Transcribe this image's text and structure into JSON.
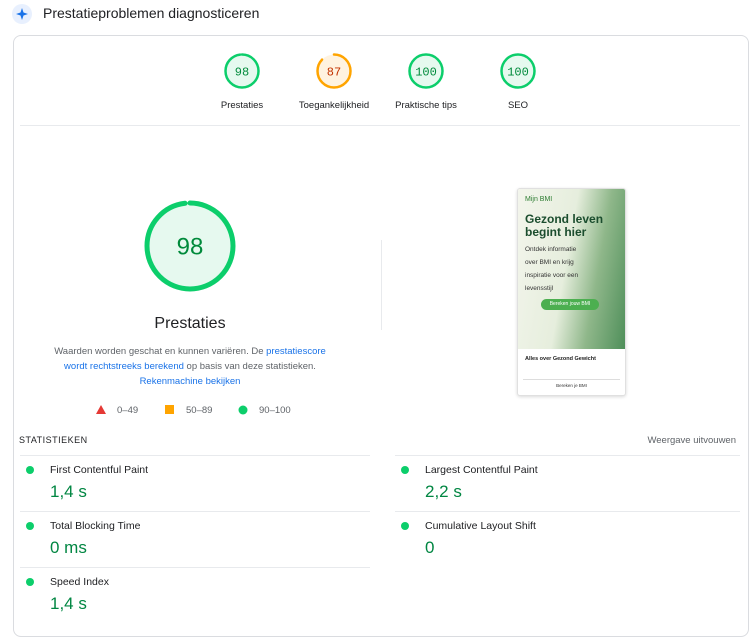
{
  "header": {
    "title": "Prestatieproblemen diagnosticeren"
  },
  "categories": [
    {
      "label": "Prestaties",
      "score": 98
    },
    {
      "label": "Toegankelijkheid",
      "score": 87
    },
    {
      "label": "Praktische tips",
      "score": 100
    },
    {
      "label": "SEO",
      "score": 100
    }
  ],
  "main": {
    "score": 98,
    "label": "Prestaties",
    "description": {
      "before": "Waarden worden geschat en kunnen variëren. De ",
      "link1": "prestatiescore wordt rechtstreeks berekend",
      "middle": " op basis van deze statistieken. ",
      "link2": "Rekenmachine bekijken"
    }
  },
  "legend": [
    "0–49",
    "50–89",
    "90–100"
  ],
  "screenshot": {
    "brand": "Mijn BMI",
    "headline": "Gezond leven begint hier",
    "intro": "Ontdek informatie over BMI en krijg inspiratie voor een levensstijl",
    "button": "Bereken jouw BMI",
    "section": "Alles over Gezond Gewicht",
    "footer_button": "Bereken je BMI"
  },
  "metrics": {
    "title": "STATISTIEKEN",
    "expand": "Weergave uitvouwen",
    "items": [
      {
        "label": "First Contentful Paint",
        "value": "1,4 s"
      },
      {
        "label": "Largest Contentful Paint",
        "value": "2,2 s"
      },
      {
        "label": "Total Blocking Time",
        "value": "0 ms"
      },
      {
        "label": "Cumulative Layout Shift",
        "value": "0"
      },
      {
        "label": "Speed Index",
        "value": "1,4 s"
      }
    ]
  }
}
